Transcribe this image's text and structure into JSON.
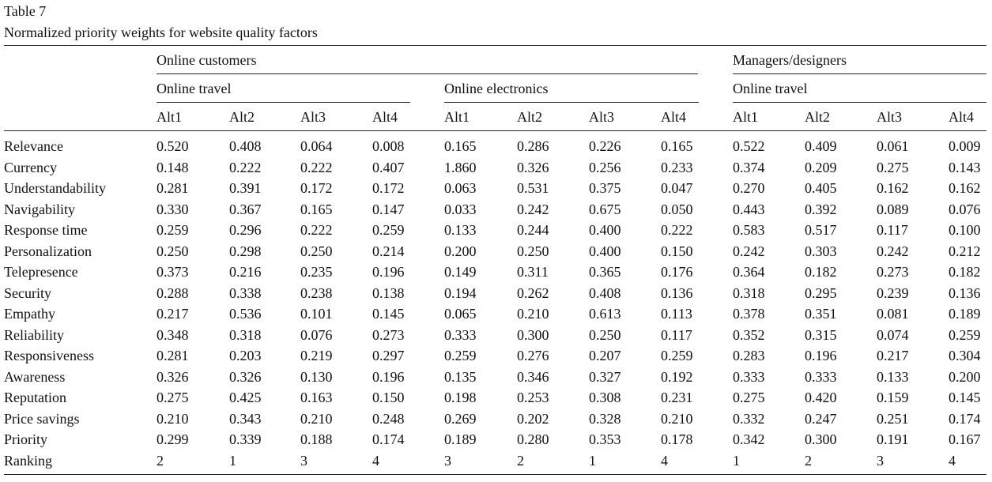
{
  "header": {
    "title": "Table 7",
    "caption": "Normalized priority weights for website quality factors"
  },
  "table": {
    "groups": [
      {
        "label": "Online customers",
        "subgroups": [
          {
            "label": "Online travel",
            "columns": [
              "Alt1",
              "Alt2",
              "Alt3",
              "Alt4"
            ]
          },
          {
            "label": "Online electronics",
            "columns": [
              "Alt1",
              "Alt2",
              "Alt3",
              "Alt4"
            ]
          }
        ]
      },
      {
        "label": "Managers/designers",
        "subgroups": [
          {
            "label": "Online travel",
            "columns": [
              "Alt1",
              "Alt2",
              "Alt3",
              "Alt4"
            ]
          }
        ]
      }
    ],
    "rows": [
      {
        "label": "Relevance",
        "values": [
          "0.520",
          "0.408",
          "0.064",
          "0.008",
          "0.165",
          "0.286",
          "0.226",
          "0.165",
          "0.522",
          "0.409",
          "0.061",
          "0.009"
        ]
      },
      {
        "label": "Currency",
        "values": [
          "0.148",
          "0.222",
          "0.222",
          "0.407",
          "1.860",
          "0.326",
          "0.256",
          "0.233",
          "0.374",
          "0.209",
          "0.275",
          "0.143"
        ]
      },
      {
        "label": "Understandability",
        "values": [
          "0.281",
          "0.391",
          "0.172",
          "0.172",
          "0.063",
          "0.531",
          "0.375",
          "0.047",
          "0.270",
          "0.405",
          "0.162",
          "0.162"
        ]
      },
      {
        "label": "Navigability",
        "values": [
          "0.330",
          "0.367",
          "0.165",
          "0.147",
          "0.033",
          "0.242",
          "0.675",
          "0.050",
          "0.443",
          "0.392",
          "0.089",
          "0.076"
        ]
      },
      {
        "label": "Response time",
        "values": [
          "0.259",
          "0.296",
          "0.222",
          "0.259",
          "0.133",
          "0.244",
          "0.400",
          "0.222",
          "0.583",
          "0.517",
          "0.117",
          "0.100"
        ]
      },
      {
        "label": "Personalization",
        "values": [
          "0.250",
          "0.298",
          "0.250",
          "0.214",
          "0.200",
          "0.250",
          "0.400",
          "0.150",
          "0.242",
          "0.303",
          "0.242",
          "0.212"
        ]
      },
      {
        "label": "Telepresence",
        "values": [
          "0.373",
          "0.216",
          "0.235",
          "0.196",
          "0.149",
          "0.311",
          "0.365",
          "0.176",
          "0.364",
          "0.182",
          "0.273",
          "0.182"
        ]
      },
      {
        "label": "Security",
        "values": [
          "0.288",
          "0.338",
          "0.238",
          "0.138",
          "0.194",
          "0.262",
          "0.408",
          "0.136",
          "0.318",
          "0.295",
          "0.239",
          "0.136"
        ]
      },
      {
        "label": "Empathy",
        "values": [
          "0.217",
          "0.536",
          "0.101",
          "0.145",
          "0.065",
          "0.210",
          "0.613",
          "0.113",
          "0.378",
          "0.351",
          "0.081",
          "0.189"
        ]
      },
      {
        "label": "Reliability",
        "values": [
          "0.348",
          "0.318",
          "0.076",
          "0.273",
          "0.333",
          "0.300",
          "0.250",
          "0.117",
          "0.352",
          "0.315",
          "0.074",
          "0.259"
        ]
      },
      {
        "label": "Responsiveness",
        "values": [
          "0.281",
          "0.203",
          "0.219",
          "0.297",
          "0.259",
          "0.276",
          "0.207",
          "0.259",
          "0.283",
          "0.196",
          "0.217",
          "0.304"
        ]
      },
      {
        "label": "Awareness",
        "values": [
          "0.326",
          "0.326",
          "0.130",
          "0.196",
          "0.135",
          "0.346",
          "0.327",
          "0.192",
          "0.333",
          "0.333",
          "0.133",
          "0.200"
        ]
      },
      {
        "label": "Reputation",
        "values": [
          "0.275",
          "0.425",
          "0.163",
          "0.150",
          "0.198",
          "0.253",
          "0.308",
          "0.231",
          "0.275",
          "0.420",
          "0.159",
          "0.145"
        ]
      },
      {
        "label": "Price savings",
        "values": [
          "0.210",
          "0.343",
          "0.210",
          "0.248",
          "0.269",
          "0.202",
          "0.328",
          "0.210",
          "0.332",
          "0.247",
          "0.251",
          "0.174"
        ]
      },
      {
        "label": "Priority",
        "values": [
          "0.299",
          "0.339",
          "0.188",
          "0.174",
          "0.189",
          "0.280",
          "0.353",
          "0.178",
          "0.342",
          "0.300",
          "0.191",
          "0.167"
        ]
      },
      {
        "label": "Ranking",
        "values": [
          "2",
          "1",
          "3",
          "4",
          "3",
          "2",
          "1",
          "4",
          "1",
          "2",
          "3",
          "4"
        ]
      }
    ]
  }
}
